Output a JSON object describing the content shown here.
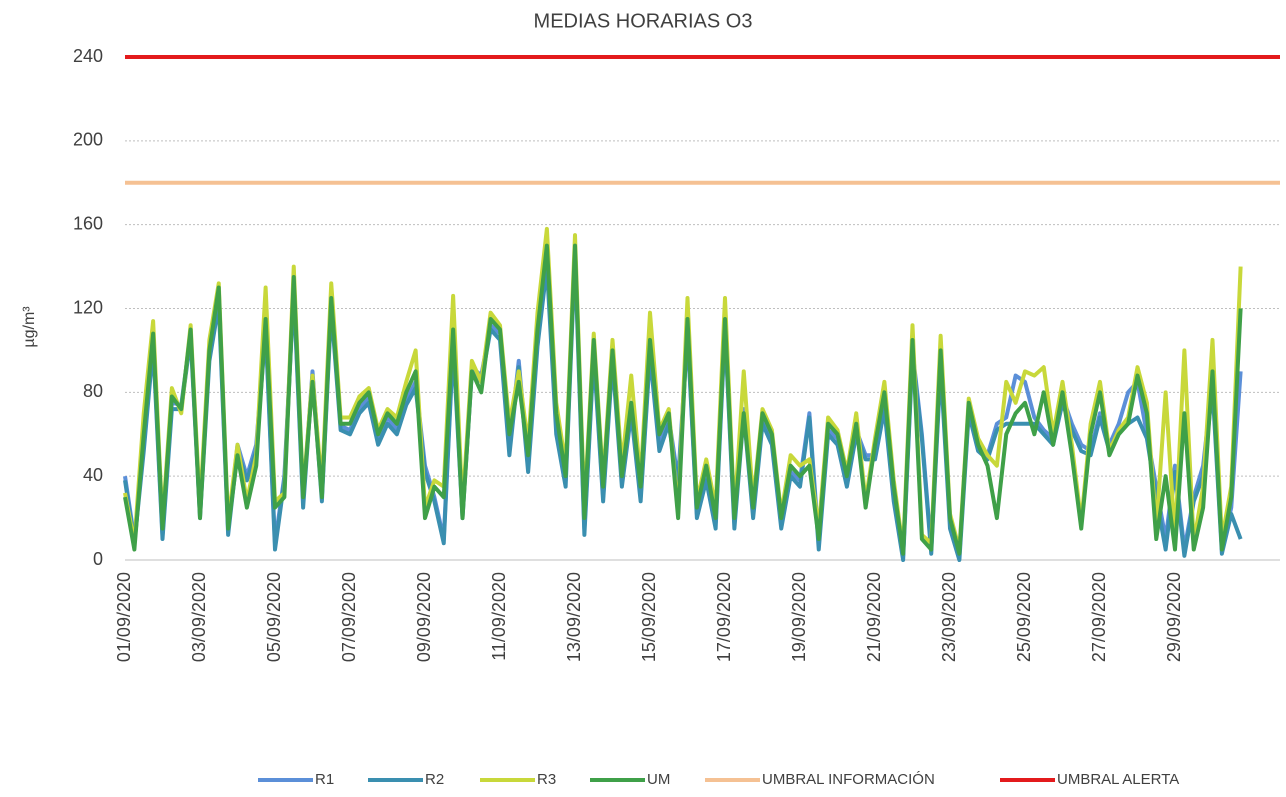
{
  "chart_data": {
    "type": "line",
    "title": "MEDIAS HORARIAS O3",
    "y_label": "µg/m³",
    "categories": [
      "01/09/2020",
      null,
      null,
      null,
      null,
      null,
      null,
      null,
      "03/09/2020",
      null,
      null,
      null,
      null,
      null,
      null,
      null,
      "05/09/2020",
      null,
      null,
      null,
      null,
      null,
      null,
      null,
      "07/09/2020",
      null,
      null,
      null,
      null,
      null,
      null,
      null,
      "09/09/2020",
      null,
      null,
      null,
      null,
      null,
      null,
      null,
      "11/09/2020",
      null,
      null,
      null,
      null,
      null,
      null,
      null,
      "13/09/2020",
      null,
      null,
      null,
      null,
      null,
      null,
      null,
      "15/09/2020",
      null,
      null,
      null,
      null,
      null,
      null,
      null,
      "17/09/2020",
      null,
      null,
      null,
      null,
      null,
      null,
      null,
      "19/09/2020",
      null,
      null,
      null,
      null,
      null,
      null,
      null,
      "21/09/2020",
      null,
      null,
      null,
      null,
      null,
      null,
      null,
      "23/09/2020",
      null,
      null,
      null,
      null,
      null,
      null,
      null,
      "25/09/2020",
      null,
      null,
      null,
      null,
      null,
      null,
      null,
      "27/09/2020",
      null,
      null,
      null,
      null,
      null,
      null,
      null,
      "29/09/2020",
      null,
      null,
      null,
      null,
      null,
      null,
      null
    ],
    "series": [
      {
        "name": "R1",
        "color": "#5b8fd8",
        "values": [
          40,
          10,
          55,
          105,
          12,
          75,
          74,
          108,
          22,
          98,
          125,
          14,
          55,
          40,
          55,
          112,
          8,
          40,
          130,
          28,
          90,
          30,
          122,
          64,
          62,
          72,
          78,
          58,
          68,
          62,
          76,
          85,
          45,
          30,
          10,
          105,
          22,
          92,
          88,
          112,
          108,
          55,
          95,
          45,
          105,
          145,
          65,
          38,
          148,
          15,
          100,
          30,
          98,
          38,
          72,
          30,
          100,
          55,
          68,
          38,
          110,
          22,
          40,
          18,
          112,
          18,
          72,
          22,
          68,
          58,
          18,
          42,
          38,
          70,
          8,
          62,
          58,
          38,
          62,
          50,
          50,
          75,
          30,
          2,
          100,
          60,
          5,
          95,
          18,
          2,
          72,
          55,
          50,
          65,
          68,
          88,
          85,
          68,
          62,
          58,
          78,
          65,
          55,
          52,
          70,
          55,
          65,
          80,
          85,
          60,
          35,
          10,
          45,
          5,
          30,
          45,
          85,
          5,
          25,
          90
        ]
      },
      {
        "name": "R2",
        "color": "#3a8fb0",
        "values": [
          38,
          8,
          52,
          102,
          10,
          72,
          72,
          106,
          20,
          95,
          122,
          12,
          52,
          38,
          52,
          110,
          5,
          38,
          128,
          25,
          88,
          28,
          120,
          62,
          60,
          70,
          75,
          55,
          65,
          60,
          74,
          82,
          42,
          28,
          8,
          102,
          20,
          90,
          85,
          110,
          105,
          50,
          92,
          42,
          102,
          140,
          60,
          35,
          145,
          12,
          98,
          28,
          95,
          35,
          70,
          28,
          98,
          52,
          65,
          35,
          108,
          20,
          38,
          15,
          110,
          15,
          70,
          20,
          65,
          55,
          15,
          40,
          35,
          68,
          5,
          60,
          55,
          35,
          60,
          48,
          48,
          72,
          28,
          0,
          98,
          58,
          3,
          92,
          15,
          0,
          70,
          52,
          48,
          62,
          65,
          65,
          65,
          65,
          60,
          55,
          75,
          62,
          52,
          50,
          68,
          52,
          62,
          65,
          68,
          58,
          30,
          5,
          42,
          2,
          28,
          40,
          82,
          3,
          22,
          10
        ]
      },
      {
        "name": "R3",
        "color": "#c8d83a",
        "values": [
          32,
          8,
          70,
          114,
          18,
          82,
          70,
          112,
          25,
          105,
          132,
          18,
          55,
          28,
          50,
          130,
          28,
          32,
          140,
          32,
          88,
          35,
          132,
          68,
          68,
          78,
          82,
          62,
          72,
          68,
          85,
          100,
          25,
          38,
          35,
          126,
          25,
          95,
          85,
          118,
          112,
          65,
          90,
          55,
          118,
          158,
          75,
          45,
          155,
          25,
          108,
          38,
          105,
          45,
          88,
          38,
          118,
          62,
          72,
          22,
          125,
          28,
          48,
          25,
          125,
          22,
          90,
          28,
          72,
          62,
          22,
          50,
          45,
          48,
          15,
          68,
          62,
          42,
          70,
          28,
          58,
          85,
          38,
          5,
          112,
          12,
          8,
          107,
          22,
          5,
          77,
          58,
          50,
          45,
          85,
          75,
          90,
          88,
          92,
          60,
          85,
          55,
          18,
          65,
          85,
          52,
          62,
          68,
          92,
          75,
          15,
          80,
          10,
          100,
          8,
          35,
          105,
          10,
          35,
          140
        ]
      },
      {
        "name": "UM",
        "color": "#3fa048",
        "values": [
          30,
          5,
          60,
          108,
          15,
          78,
          72,
          110,
          20,
          100,
          130,
          15,
          50,
          25,
          45,
          115,
          25,
          30,
          135,
          30,
          85,
          30,
          125,
          65,
          65,
          75,
          80,
          60,
          70,
          65,
          80,
          90,
          20,
          35,
          30,
          110,
          20,
          90,
          80,
          115,
          110,
          60,
          85,
          50,
          110,
          150,
          70,
          40,
          150,
          20,
          105,
          35,
          100,
          40,
          75,
          35,
          105,
          60,
          70,
          20,
          115,
          25,
          45,
          20,
          115,
          20,
          70,
          25,
          70,
          60,
          20,
          45,
          40,
          45,
          10,
          65,
          60,
          40,
          65,
          25,
          55,
          80,
          35,
          3,
          105,
          10,
          5,
          100,
          20,
          3,
          75,
          55,
          45,
          20,
          60,
          70,
          75,
          60,
          80,
          55,
          80,
          50,
          15,
          60,
          80,
          50,
          60,
          65,
          88,
          70,
          10,
          40,
          5,
          70,
          5,
          25,
          90,
          5,
          30,
          120
        ]
      }
    ],
    "thresholds": [
      {
        "name": "UMBRAL INFORMACIÓN",
        "color": "#f5c193",
        "value": 180
      },
      {
        "name": "UMBRAL ALERTA",
        "color": "#e31a1c",
        "value": 240
      }
    ],
    "ylim": [
      0,
      240
    ],
    "yticks": [
      0,
      40,
      80,
      120,
      160,
      200,
      240
    ],
    "grid": true
  }
}
